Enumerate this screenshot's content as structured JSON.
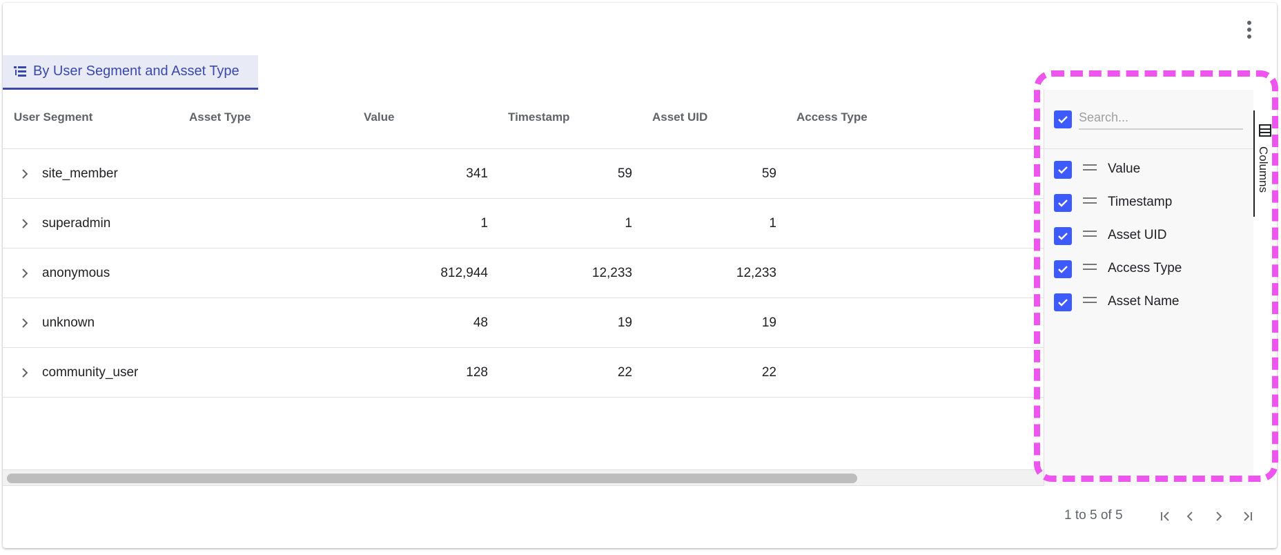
{
  "tab": {
    "label": "By User Segment and Asset Type",
    "icon": "tree-list-icon"
  },
  "columns": [
    "User Segment",
    "Asset Type",
    "Value",
    "Timestamp",
    "Asset UID",
    "Access Type"
  ],
  "rows": [
    {
      "segment": "site_member",
      "value": "341",
      "timestamp": "59",
      "asset_uid": "59"
    },
    {
      "segment": "superadmin",
      "value": "1",
      "timestamp": "1",
      "asset_uid": "1"
    },
    {
      "segment": "anonymous",
      "value": "812,944",
      "timestamp": "12,233",
      "asset_uid": "12,233"
    },
    {
      "segment": "unknown",
      "value": "48",
      "timestamp": "19",
      "asset_uid": "19"
    },
    {
      "segment": "community_user",
      "value": "128",
      "timestamp": "22",
      "asset_uid": "22"
    }
  ],
  "columns_panel": {
    "search_placeholder": "Search...",
    "items": [
      "Value",
      "Timestamp",
      "Asset UID",
      "Access Type",
      "Asset Name"
    ],
    "side_tab_label": "Columns"
  },
  "pagination": {
    "summary": "1 to 5 of 5"
  },
  "colors": {
    "accent": "#3949ab",
    "checkbox": "#3d5afe",
    "highlight": "#ee55ee"
  }
}
